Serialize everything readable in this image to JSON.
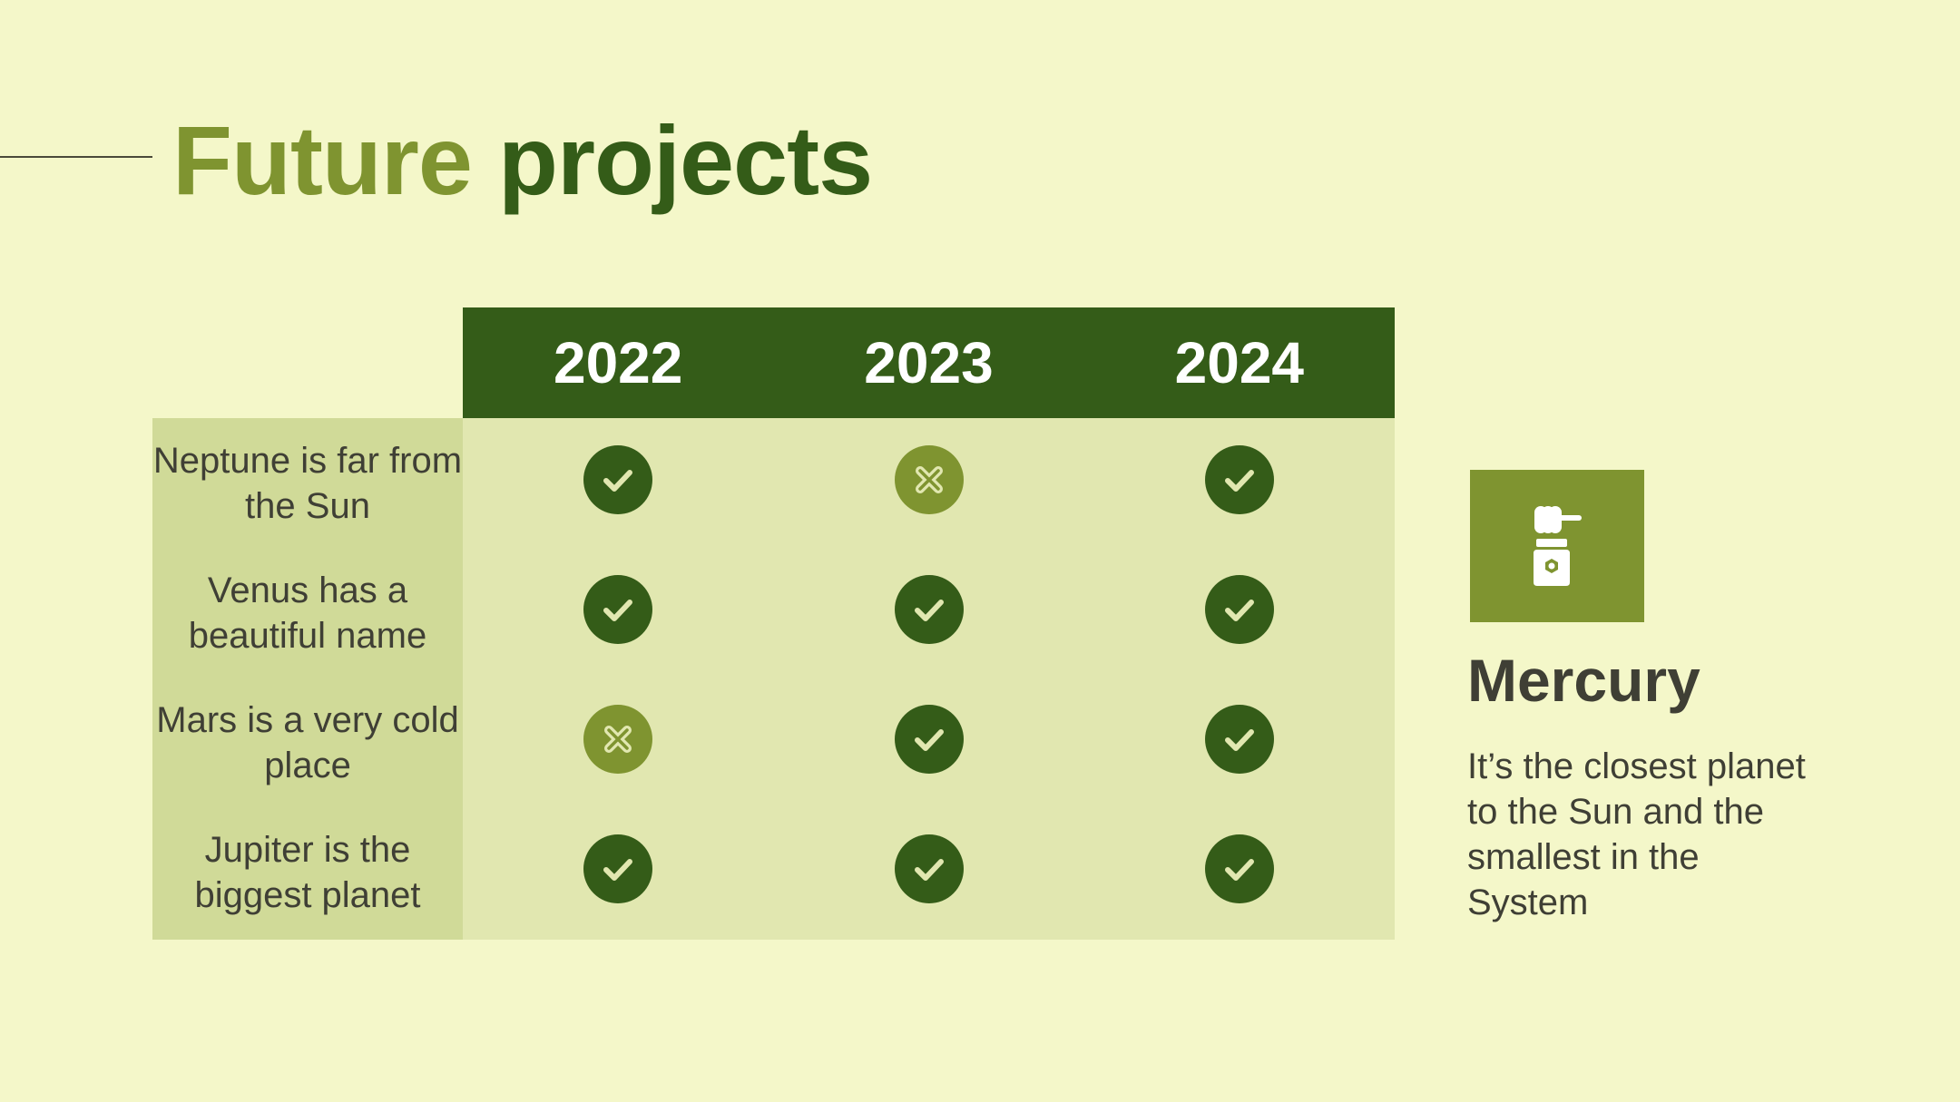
{
  "slide": {
    "title_part1": "Future",
    "title_part2": "projects"
  },
  "table": {
    "years": [
      "2022",
      "2023",
      "2024"
    ],
    "rows": [
      {
        "label": "Neptune is far from the Sun",
        "status": [
          "check",
          "cross",
          "check"
        ]
      },
      {
        "label": "Venus has a beautiful name",
        "status": [
          "check",
          "check",
          "check"
        ]
      },
      {
        "label": "Mars is a very cold place",
        "status": [
          "cross",
          "check",
          "check"
        ]
      },
      {
        "label": "Jupiter is the biggest planet",
        "status": [
          "check",
          "check",
          "check"
        ]
      }
    ]
  },
  "card": {
    "icon": "ink-bottle-icon",
    "title": "Mercury",
    "text": "It’s the closest planet to the Sun and the smallest in the System"
  },
  "colors": {
    "background": "#f4f7c9",
    "dark_green": "#345c18",
    "olive": "#7f9430",
    "label_column": "#d0da98",
    "cell_area": "#e1e7b0",
    "icon_stroke": "#e1e7b0",
    "text": "#3f3f35"
  }
}
